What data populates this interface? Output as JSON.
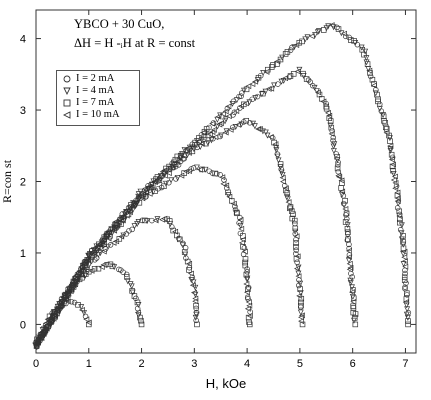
{
  "annotations": {
    "line1": "YBCO + 30 CuO,",
    "line2": "ΔH = H  -ᵢH   at R = const"
  },
  "chart_data": {
    "type": "scatter",
    "title": "",
    "xlabel": "H, kOe",
    "ylabel": "R=con st",
    "xlim": [
      0,
      7.2
    ],
    "ylim": [
      -0.4,
      4.4
    ],
    "xticks": [
      "0",
      "1",
      "2",
      "3",
      "4",
      "5",
      "6",
      "7"
    ],
    "yticks": [
      "0",
      "1",
      "2",
      "3",
      "4"
    ],
    "grid": false,
    "legend_position": "top-left",
    "legend": [
      {
        "label": "I = 2 mA",
        "marker": "circle"
      },
      {
        "label": "I = 4 mA",
        "marker": "triangle-down"
      },
      {
        "label": "I = 7 mA",
        "marker": "square"
      },
      {
        "label": "I = 10 mA",
        "marker": "triangle-left"
      }
    ],
    "curves": [
      {
        "x": [
          0.0,
          0.3,
          0.6,
          0.8,
          0.95,
          1.0
        ],
        "y": [
          -0.25,
          0.15,
          0.32,
          0.28,
          0.12,
          0.0
        ]
      },
      {
        "x": [
          0.0,
          0.5,
          1.0,
          1.4,
          1.7,
          1.9,
          2.0
        ],
        "y": [
          -0.3,
          0.35,
          0.75,
          0.85,
          0.7,
          0.35,
          0.0
        ]
      },
      {
        "x": [
          0.0,
          1.0,
          2.0,
          2.5,
          2.8,
          3.0,
          3.05
        ],
        "y": [
          -0.3,
          0.85,
          1.45,
          1.48,
          1.1,
          0.5,
          0.0
        ]
      },
      {
        "x": [
          0.0,
          1.0,
          2.0,
          3.0,
          3.5,
          3.85,
          4.0,
          4.05
        ],
        "y": [
          -0.3,
          0.9,
          1.75,
          2.2,
          2.1,
          1.5,
          0.7,
          0.0
        ]
      },
      {
        "x": [
          0.0,
          1.0,
          2.0,
          3.0,
          4.0,
          4.5,
          4.9,
          5.05
        ],
        "y": [
          -0.3,
          0.95,
          1.8,
          2.45,
          2.85,
          2.6,
          1.4,
          0.0
        ]
      },
      {
        "x": [
          0.0,
          1.0,
          2.0,
          3.0,
          4.0,
          5.0,
          5.5,
          5.85,
          6.05
        ],
        "y": [
          -0.3,
          0.95,
          1.8,
          2.5,
          3.1,
          3.55,
          3.1,
          1.7,
          0.0
        ]
      },
      {
        "x": [
          0.0,
          1.0,
          2.0,
          3.0,
          4.0,
          5.0,
          5.6,
          6.2,
          6.7,
          6.95,
          7.05
        ],
        "y": [
          -0.3,
          0.95,
          1.85,
          2.55,
          3.3,
          3.95,
          4.2,
          3.85,
          2.6,
          1.2,
          0.0
        ]
      }
    ]
  }
}
